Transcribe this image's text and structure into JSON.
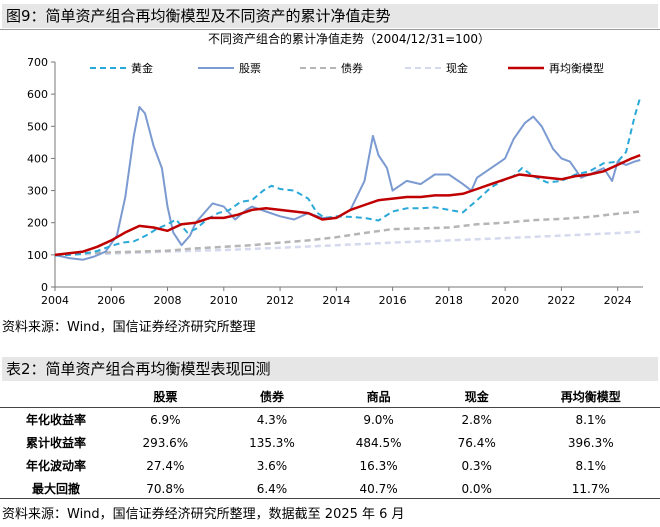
{
  "figure": {
    "title": "图9：简单资产组合再均衡模型及不同资产的累计净值走势",
    "source": "资料来源：Wind，国信证券经济研究所整理"
  },
  "chart_data": {
    "type": "line",
    "title": "不同资产组合的累计净值走势（2004/12/31=100）",
    "xlim": [
      2004,
      2024.9
    ],
    "ylim": [
      0,
      700
    ],
    "xticks": [
      2004,
      2006,
      2008,
      2010,
      2012,
      2014,
      2016,
      2018,
      2020,
      2022,
      2024
    ],
    "yticks": [
      0,
      100,
      200,
      300,
      400,
      500,
      600,
      700
    ],
    "grid": false,
    "legend_position": "top",
    "series": [
      {
        "name": "黄金",
        "color": "#2aa8d8",
        "style": "dashed",
        "x": [
          2004.0,
          2004.5,
          2005.0,
          2005.5,
          2006.0,
          2006.4,
          2006.8,
          2007.0,
          2007.3,
          2007.6,
          2008.0,
          2008.3,
          2008.7,
          2009.0,
          2009.4,
          2009.8,
          2010.2,
          2010.6,
          2011.0,
          2011.4,
          2011.7,
          2012.0,
          2012.5,
          2013.0,
          2013.3,
          2013.6,
          2014.0,
          2014.5,
          2015.0,
          2015.5,
          2016.0,
          2016.5,
          2017.0,
          2017.5,
          2018.0,
          2018.5,
          2019.0,
          2019.5,
          2020.0,
          2020.3,
          2020.6,
          2021.0,
          2021.5,
          2022.0,
          2022.5,
          2023.0,
          2023.5,
          2024.0,
          2024.3,
          2024.6,
          2024.8
        ],
        "y": [
          98,
          100,
          103,
          112,
          128,
          138,
          142,
          150,
          163,
          180,
          195,
          210,
          170,
          180,
          210,
          230,
          240,
          265,
          270,
          300,
          315,
          305,
          300,
          275,
          232,
          215,
          220,
          218,
          215,
          207,
          235,
          245,
          245,
          248,
          240,
          232,
          270,
          310,
          335,
          345,
          370,
          345,
          325,
          330,
          350,
          360,
          385,
          390,
          420,
          530,
          590
        ]
      },
      {
        "name": "股票",
        "color": "#7b9ad1",
        "style": "solid",
        "x": [
          2004.0,
          2004.5,
          2005.0,
          2005.4,
          2005.8,
          2006.2,
          2006.5,
          2006.8,
          2007.0,
          2007.2,
          2007.5,
          2007.8,
          2008.0,
          2008.2,
          2008.5,
          2008.8,
          2009.0,
          2009.3,
          2009.6,
          2010.0,
          2010.4,
          2010.8,
          2011.0,
          2011.5,
          2012.0,
          2012.5,
          2013.0,
          2013.5,
          2014.0,
          2014.5,
          2015.0,
          2015.3,
          2015.5,
          2015.8,
          2016.0,
          2016.5,
          2017.0,
          2017.5,
          2018.0,
          2018.5,
          2018.8,
          2019.0,
          2019.5,
          2020.0,
          2020.3,
          2020.7,
          2021.0,
          2021.3,
          2021.7,
          2022.0,
          2022.3,
          2022.7,
          2023.0,
          2023.5,
          2023.8,
          2024.0,
          2024.3,
          2024.6,
          2024.8
        ],
        "y": [
          100,
          90,
          85,
          95,
          110,
          160,
          280,
          470,
          560,
          540,
          440,
          370,
          250,
          170,
          130,
          160,
          200,
          230,
          260,
          250,
          210,
          240,
          250,
          235,
          220,
          210,
          230,
          215,
          215,
          240,
          330,
          470,
          410,
          370,
          300,
          330,
          320,
          350,
          350,
          320,
          300,
          340,
          370,
          400,
          460,
          510,
          530,
          500,
          430,
          400,
          390,
          340,
          350,
          370,
          330,
          390,
          380,
          390,
          395
        ]
      },
      {
        "name": "债券",
        "color": "#b5b5b5",
        "style": "dashed",
        "x": [
          2004.0,
          2005.0,
          2006.0,
          2007.0,
          2008.0,
          2009.0,
          2010.0,
          2011.0,
          2012.0,
          2013.0,
          2014.0,
          2015.0,
          2016.0,
          2017.0,
          2018.0,
          2019.0,
          2020.0,
          2021.0,
          2022.0,
          2023.0,
          2024.0,
          2024.8
        ],
        "y": [
          98,
          105,
          108,
          110,
          113,
          120,
          125,
          130,
          138,
          145,
          155,
          168,
          180,
          182,
          185,
          195,
          200,
          208,
          212,
          218,
          228,
          235
        ]
      },
      {
        "name": "现金",
        "color": "#d5d9ee",
        "style": "dashed",
        "x": [
          2004.0,
          2006.0,
          2008.0,
          2010.0,
          2012.0,
          2014.0,
          2016.0,
          2018.0,
          2020.0,
          2022.0,
          2024.0,
          2024.8
        ],
        "y": [
          100,
          104,
          110,
          115,
          122,
          130,
          138,
          145,
          152,
          160,
          168,
          172
        ]
      },
      {
        "name": "再均衡模型",
        "color": "#c00000",
        "style": "solid",
        "x": [
          2004.0,
          2005.0,
          2005.5,
          2006.0,
          2006.5,
          2007.0,
          2007.5,
          2008.0,
          2008.5,
          2009.0,
          2009.5,
          2010.0,
          2010.5,
          2011.0,
          2011.5,
          2012.0,
          2012.5,
          2013.0,
          2013.5,
          2014.0,
          2014.5,
          2015.0,
          2015.5,
          2016.0,
          2016.5,
          2017.0,
          2017.5,
          2018.0,
          2018.5,
          2019.0,
          2019.5,
          2020.0,
          2020.5,
          2021.0,
          2021.5,
          2022.0,
          2022.5,
          2023.0,
          2023.5,
          2024.0,
          2024.5,
          2024.8
        ],
        "y": [
          100,
          110,
          125,
          145,
          170,
          190,
          185,
          175,
          195,
          200,
          215,
          215,
          225,
          240,
          245,
          240,
          235,
          230,
          210,
          215,
          240,
          255,
          270,
          275,
          280,
          280,
          285,
          285,
          290,
          305,
          320,
          335,
          350,
          345,
          340,
          335,
          345,
          350,
          360,
          380,
          400,
          410
        ]
      }
    ]
  },
  "table": {
    "title": "表2：简单资产组合再均衡模型表现回测",
    "columns": [
      "",
      "股票",
      "债券",
      "商品",
      "现金",
      "再均衡模型"
    ],
    "rows": [
      [
        "年化收益率",
        "6.9%",
        "4.3%",
        "9.0%",
        "2.8%",
        "8.1%"
      ],
      [
        "累计收益率",
        "293.6%",
        "135.3%",
        "484.5%",
        "76.4%",
        "396.3%"
      ],
      [
        "年化波动率",
        "27.4%",
        "3.6%",
        "16.3%",
        "0.3%",
        "8.1%"
      ],
      [
        "最大回撤",
        "70.8%",
        "6.4%",
        "40.7%",
        "0.0%",
        "11.7%"
      ]
    ],
    "source": "资料来源：Wind，国信证券经济研究所整理，数据截至 2025 年 6 月"
  }
}
